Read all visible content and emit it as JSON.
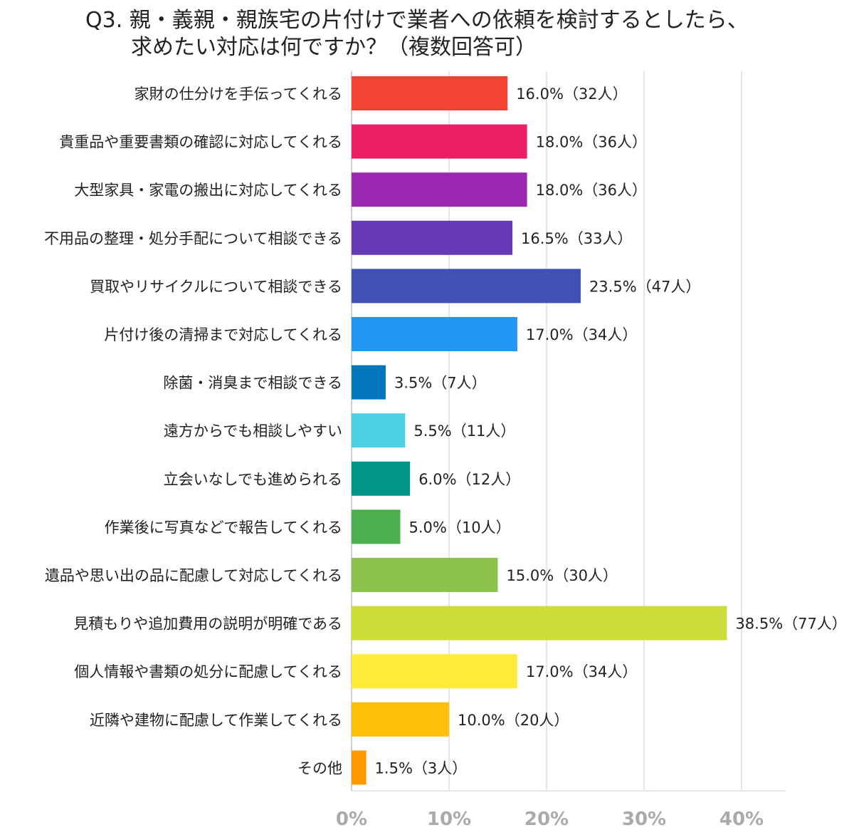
{
  "chart_data": {
    "type": "bar",
    "orientation": "horizontal",
    "title": [
      "Q3. 親・義親・親族宅の片付けで業者への依頼を検討するとしたら、",
      "求めたい対応は何ですか？（複数回答可）"
    ],
    "categories": [
      "家財の仕分けを手伝ってくれる",
      "貴重品や重要書類の確認に対応してくれる",
      "大型家具・家電の搬出に対応してくれる",
      "不用品の整理・処分手配について相談できる",
      "買取やリサイクルについて相談できる",
      "片付け後の清掃まで対応してくれる",
      "除菌・消臭まで相談できる",
      "遠方からでも相談しやすい",
      "立会いなしでも進められる",
      "作業後に写真などで報告してくれる",
      "遺品や思い出の品に配慮して対応してくれる",
      "見積もりや追加費用の説明が明確である",
      "個人情報や書類の処分に配慮してくれる",
      "近隣や建物に配慮して作業してくれる",
      "その他"
    ],
    "values": [
      16.0,
      18.0,
      18.0,
      16.5,
      23.5,
      17.0,
      3.5,
      5.5,
      6.0,
      5.0,
      15.0,
      38.5,
      17.0,
      10.0,
      1.5
    ],
    "data_labels": [
      "16.0%（32人）",
      "18.0%（36人）",
      "18.0%（36人）",
      "16.5%（33人）",
      "23.5%（47人）",
      "17.0%（34人）",
      "3.5%（7人）",
      "5.5%（11人）",
      "6.0%（12人）",
      "5.0%（10人）",
      "15.0%（30人）",
      "38.5%（77人）",
      "17.0%（34人）",
      "10.0%（20人）",
      "1.5%（3人）"
    ],
    "colors": [
      "#f44336",
      "#e91e63",
      "#9c27b0",
      "#673ab7",
      "#3f51b5",
      "#2196f3",
      "#0277bd",
      "#4dd0e1",
      "#009688",
      "#4caf50",
      "#8bc34a",
      "#cddc39",
      "#ffeb3b",
      "#ffc107",
      "#ff9800"
    ],
    "xlim": [
      0,
      40
    ],
    "xticks": [
      0,
      10,
      20,
      30,
      40
    ],
    "xtick_labels": [
      "0%",
      "10%",
      "20%",
      "30%",
      "40%"
    ],
    "grid": true,
    "legend": "none"
  }
}
